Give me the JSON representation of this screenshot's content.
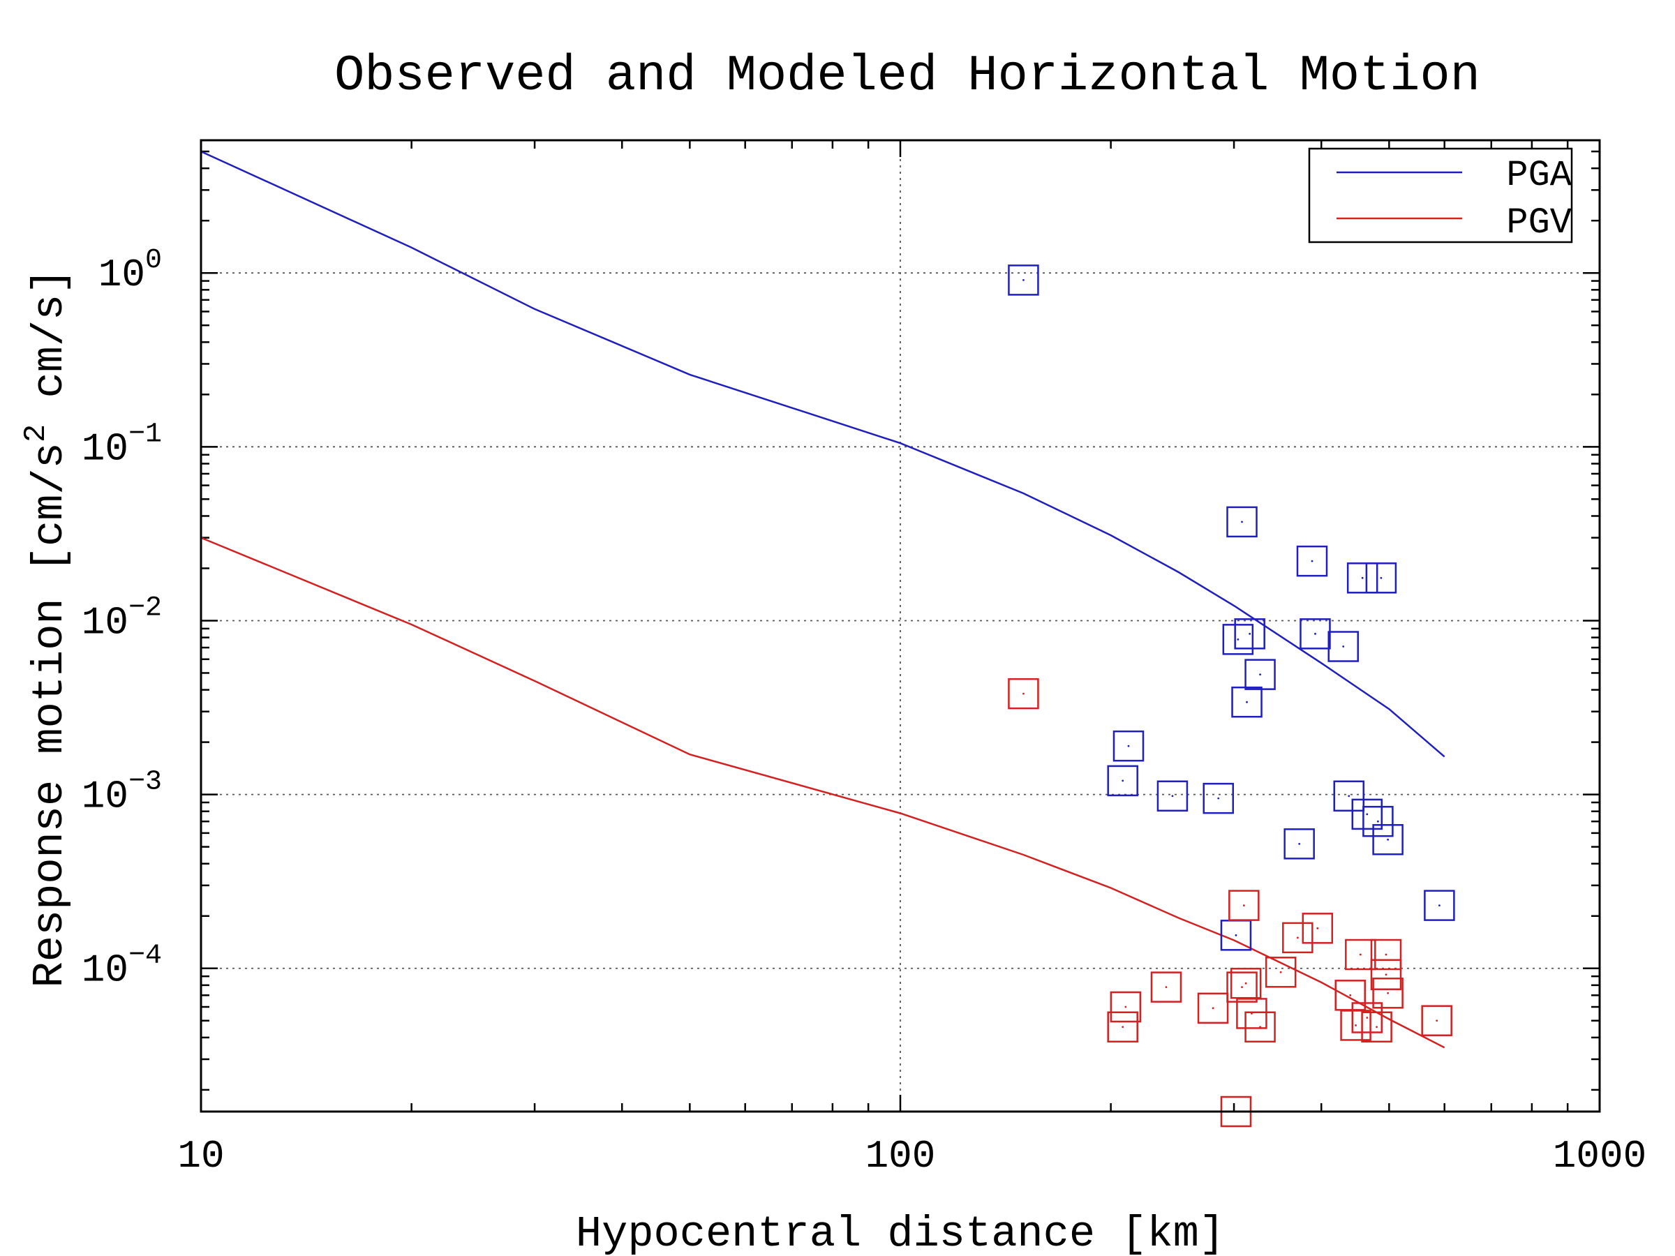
{
  "chart_data": {
    "type": "scatter",
    "title": "Observed and Modeled Horizontal Motion",
    "xlabel": "Hypocentral distance [km]",
    "ylabel": "Response motion  [cm/s2  cm/s]",
    "ylabel_parts": {
      "open": "Response motion  [cm/s",
      "sup": "2",
      "close": "  cm/s]"
    },
    "xscale": "log",
    "yscale": "log",
    "xlim": [
      10,
      1000
    ],
    "ylim": [
      1.5e-05,
      5.8
    ],
    "grid": true,
    "legend_position": "top-right",
    "x_ticks": [
      {
        "value": 10,
        "label": "10"
      },
      {
        "value": 100,
        "label": "100"
      },
      {
        "value": 1000,
        "label": "1000"
      }
    ],
    "y_ticks": [
      {
        "value": 1,
        "base": "10",
        "exp": "0"
      },
      {
        "value": 0.1,
        "base": "10",
        "exp": "−1"
      },
      {
        "value": 0.01,
        "base": "10",
        "exp": "−2"
      },
      {
        "value": 0.001,
        "base": "10",
        "exp": "−3"
      },
      {
        "value": 0.0001,
        "base": "10",
        "exp": "−4"
      }
    ],
    "series": [
      {
        "name": "PGA",
        "kind": "line",
        "color": "#1f1fbf",
        "x": [
          10,
          20,
          30,
          50,
          100,
          150,
          200,
          250,
          300,
          400,
          500,
          600
        ],
        "y": [
          5.0,
          1.4,
          0.62,
          0.26,
          0.105,
          0.054,
          0.031,
          0.019,
          0.0122,
          0.0057,
          0.0031,
          0.00165
        ]
      },
      {
        "name": "PGV",
        "kind": "line",
        "color": "#d42020",
        "x": [
          10,
          20,
          30,
          50,
          100,
          150,
          200,
          250,
          300,
          400,
          500,
          600
        ],
        "y": [
          0.03,
          0.0095,
          0.0045,
          0.0017,
          0.00078,
          0.00045,
          0.00029,
          0.000195,
          0.000145,
          8.3e-05,
          5.1e-05,
          3.5e-05
        ]
      },
      {
        "name": "",
        "kind": "markers",
        "marker": "open-square",
        "color": "#1f1fbf",
        "x": [
          150,
          308,
          388,
          458,
          487,
          316,
          304,
          327,
          313,
          212,
          208,
          245,
          285,
          438,
          465,
          482,
          372,
          498,
          590,
          302,
          430,
          392
        ],
        "y": [
          0.91,
          0.037,
          0.022,
          0.0176,
          0.0176,
          0.0084,
          0.0078,
          0.0049,
          0.0034,
          0.0019,
          0.0012,
          0.00098,
          0.00095,
          0.00098,
          0.00077,
          0.0007,
          0.00052,
          0.00055,
          0.00023,
          0.000155,
          0.0071,
          0.0084
        ]
      },
      {
        "name": "",
        "kind": "markers",
        "marker": "open-square",
        "color": "#d42020",
        "x": [
          150,
          310,
          395,
          370,
          455,
          495,
          308,
          350,
          495,
          240,
          312,
          210,
          208,
          280,
          318,
          327,
          440,
          465,
          448,
          480,
          498,
          585,
          302
        ],
        "y": [
          0.0038,
          0.00023,
          0.00017,
          0.00015,
          0.00012,
          0.00012,
          7.8e-05,
          9.5e-05,
          9.2e-05,
          7.8e-05,
          8.2e-05,
          6e-05,
          4.6e-05,
          5.9e-05,
          5.5e-05,
          4.6e-05,
          7e-05,
          5.2e-05,
          4.7e-05,
          4.6e-05,
          7.2e-05,
          5e-05,
          1.5e-05
        ]
      }
    ]
  }
}
